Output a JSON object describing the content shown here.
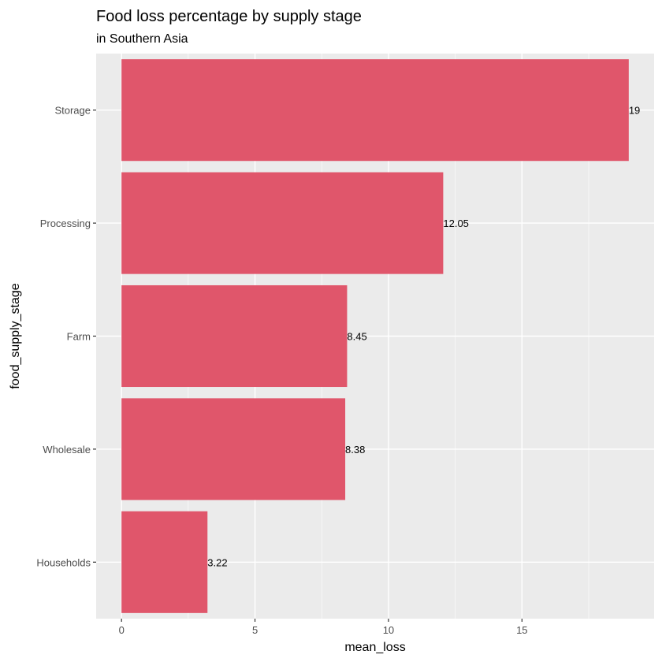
{
  "chart_data": {
    "type": "bar",
    "orientation": "horizontal",
    "title": "Food loss percentage by supply stage",
    "subtitle": "in Southern Asia",
    "xlabel": "mean_loss",
    "ylabel": "food_supply_stage",
    "categories": [
      "Storage",
      "Processing",
      "Farm",
      "Wholesale",
      "Households"
    ],
    "values": [
      19,
      12.05,
      8.45,
      8.38,
      3.22
    ],
    "data_labels": [
      "19",
      "12.05",
      "8.45",
      "8.38",
      "3.22"
    ],
    "xlim": [
      -0.95,
      19.95
    ],
    "x_ticks": [
      0,
      5,
      10,
      15
    ],
    "x_tick_labels": [
      "0",
      "5",
      "10",
      "15"
    ],
    "grid": true,
    "bar_color": "#E0566B",
    "panel_color": "#EBEBEB",
    "grid_color": "#FFFFFF"
  }
}
